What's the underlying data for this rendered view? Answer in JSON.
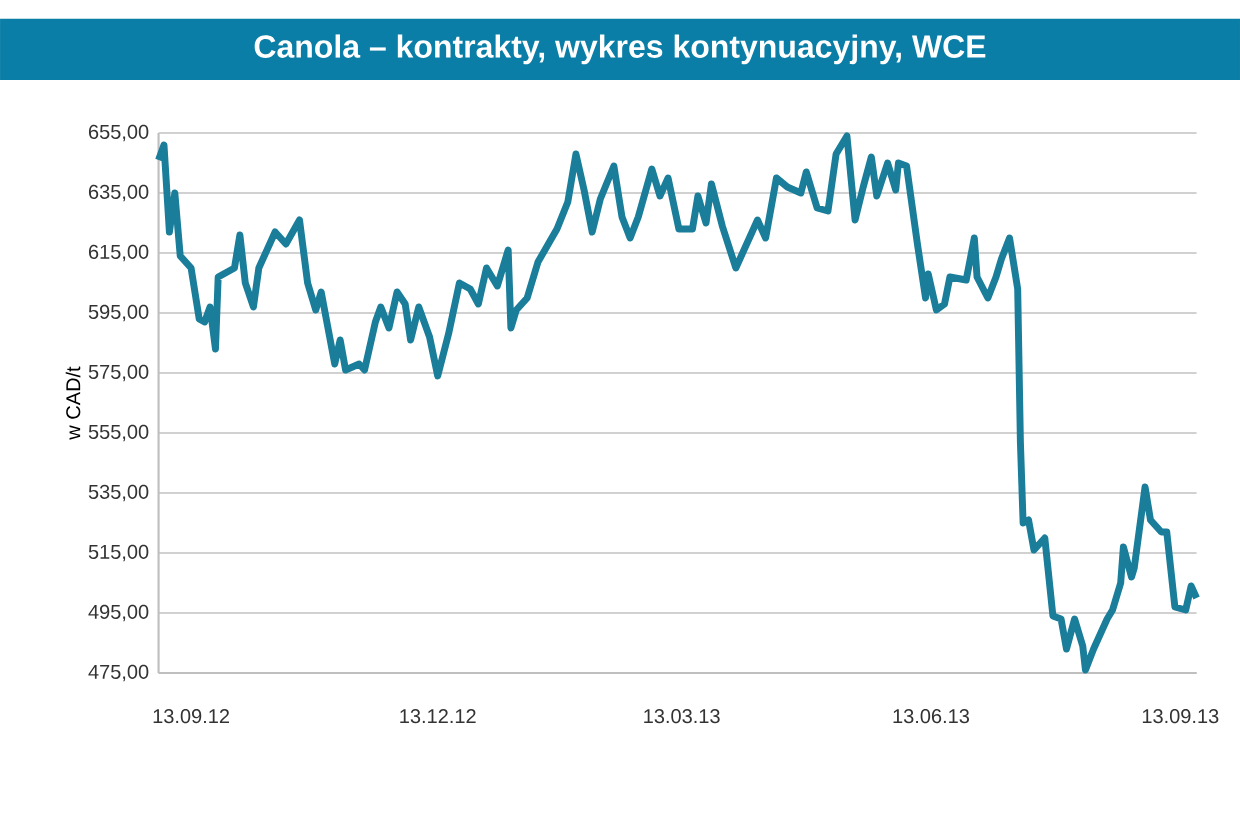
{
  "chart_data": {
    "type": "line",
    "title": "Canola – kontrakty, wykres kontynuacyjny, WCE",
    "ylabel": "w CAD/t",
    "x": [
      "2012-09-01",
      "2012-09-03",
      "2012-09-05",
      "2012-09-07",
      "2012-09-09",
      "2012-09-13",
      "2012-09-16",
      "2012-09-18",
      "2012-09-20",
      "2012-09-22",
      "2012-09-23",
      "2012-09-29",
      "2012-10-01",
      "2012-10-03",
      "2012-10-06",
      "2012-10-08",
      "2012-10-14",
      "2012-10-18",
      "2012-10-23",
      "2012-10-26",
      "2012-10-29",
      "2012-10-31",
      "2012-11-05",
      "2012-11-07",
      "2012-11-09",
      "2012-11-14",
      "2012-11-16",
      "2012-11-20",
      "2012-11-22",
      "2012-11-25",
      "2012-11-28",
      "2012-12-01",
      "2012-12-03",
      "2012-12-06",
      "2012-12-10",
      "2012-12-13",
      "2012-12-17",
      "2012-12-21",
      "2012-12-25",
      "2012-12-28",
      "2012-12-31",
      "2013-01-04",
      "2013-01-08",
      "2013-01-09",
      "2013-01-11",
      "2013-01-15",
      "2013-01-19",
      "2013-01-26",
      "2013-01-30",
      "2013-02-02",
      "2013-02-05",
      "2013-02-08",
      "2013-02-11",
      "2013-02-16",
      "2013-02-19",
      "2013-02-22",
      "2013-02-25",
      "2013-03-02",
      "2013-03-05",
      "2013-03-08",
      "2013-03-12",
      "2013-03-17",
      "2013-03-19",
      "2013-03-22",
      "2013-03-24",
      "2013-03-28",
      "2013-04-02",
      "2013-04-07",
      "2013-04-10",
      "2013-04-13",
      "2013-04-17",
      "2013-04-21",
      "2013-04-26",
      "2013-04-28",
      "2013-05-02",
      "2013-05-06",
      "2013-05-09",
      "2013-05-13",
      "2013-05-16",
      "2013-05-19",
      "2013-05-22",
      "2013-05-24",
      "2013-05-28",
      "2013-05-31",
      "2013-06-01",
      "2013-06-04",
      "2013-06-08",
      "2013-06-11",
      "2013-06-12",
      "2013-06-15",
      "2013-06-18",
      "2013-06-20",
      "2013-06-26",
      "2013-06-29",
      "2013-06-30",
      "2013-07-04",
      "2013-07-07",
      "2013-07-09",
      "2013-07-12",
      "2013-07-15",
      "2013-07-16",
      "2013-07-17",
      "2013-07-19",
      "2013-07-21",
      "2013-07-25",
      "2013-07-28",
      "2013-07-31",
      "2013-08-02",
      "2013-08-05",
      "2013-08-08",
      "2013-08-09",
      "2013-08-12",
      "2013-08-17",
      "2013-08-19",
      "2013-08-22",
      "2013-08-23",
      "2013-08-26",
      "2013-08-27",
      "2013-08-31",
      "2013-09-02",
      "2013-09-06",
      "2013-09-08",
      "2013-09-11",
      "2013-09-15",
      "2013-09-17",
      "2013-09-19"
    ],
    "series": [
      {
        "color": "#1a7d9a",
        "values": [
          646,
          651,
          622,
          635,
          614,
          610,
          593,
          592,
          597,
          583,
          607,
          610,
          621,
          605,
          597,
          610,
          622,
          618,
          626,
          605,
          596,
          602,
          578,
          586,
          576,
          578,
          576,
          592,
          597,
          590,
          602,
          598,
          586,
          597,
          587,
          574,
          588,
          605,
          603,
          598,
          610,
          604,
          616,
          590,
          596,
          600,
          612,
          623,
          632,
          648,
          636,
          622,
          633,
          644,
          627,
          620,
          627,
          643,
          634,
          640,
          623,
          623,
          634,
          625,
          638,
          624,
          610,
          620,
          626,
          620,
          640,
          637,
          635,
          642,
          630,
          629,
          648,
          654,
          626,
          637,
          647,
          634,
          645,
          636,
          645,
          644,
          618,
          600,
          608,
          596,
          598,
          607,
          606,
          620,
          607,
          600,
          607,
          613,
          620,
          603,
          552,
          525,
          526,
          516,
          520,
          494,
          493,
          483,
          493,
          484,
          476,
          483,
          493,
          496,
          505,
          517,
          507,
          510,
          537,
          526,
          522,
          522,
          497,
          496,
          504,
          500
        ]
      }
    ],
    "xlim": [
      "2012-09-01",
      "2013-09-19"
    ],
    "xticks": [
      {
        "value": "2012-09-13",
        "label": "13.09.12"
      },
      {
        "value": "2012-12-13",
        "label": "13.12.12"
      },
      {
        "value": "2013-03-13",
        "label": "13.03.13"
      },
      {
        "value": "2013-06-13",
        "label": "13.06.13"
      },
      {
        "value": "2013-09-13",
        "label": "13.09.13"
      }
    ],
    "ylim": [
      475,
      655
    ],
    "yticks": [
      {
        "value": 475,
        "label": "475,00"
      },
      {
        "value": 495,
        "label": "495,00"
      },
      {
        "value": 515,
        "label": "515,00"
      },
      {
        "value": 535,
        "label": "535,00"
      },
      {
        "value": 555,
        "label": "555,00"
      },
      {
        "value": 575,
        "label": "575,00"
      },
      {
        "value": 595,
        "label": "595,00"
      },
      {
        "value": 615,
        "label": "615,00"
      },
      {
        "value": 635,
        "label": "635,00"
      },
      {
        "value": 655,
        "label": "655,00"
      }
    ],
    "grid": "y"
  }
}
